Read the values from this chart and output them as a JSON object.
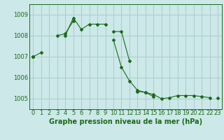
{
  "background_color": "#cce8e8",
  "grid_color": "#aacccc",
  "line_color": "#1a6b1a",
  "xlabel": "Graphe pression niveau de la mer (hPa)",
  "xlabel_fontsize": 7,
  "tick_fontsize": 6,
  "ylim": [
    1004.5,
    1009.5
  ],
  "yticks": [
    1005,
    1006,
    1007,
    1008,
    1009
  ],
  "xlim": [
    -0.5,
    23.5
  ],
  "xticks": [
    0,
    1,
    2,
    3,
    4,
    5,
    6,
    7,
    8,
    9,
    10,
    11,
    12,
    13,
    14,
    15,
    16,
    17,
    18,
    19,
    20,
    21,
    22,
    23
  ],
  "series": [
    [
      1007.0,
      1007.2,
      null,
      1008.0,
      1008.1,
      1008.7,
      null,
      null,
      null,
      null,
      1008.2,
      1008.2,
      1006.8,
      null,
      null,
      null,
      null,
      null,
      null,
      null,
      null,
      null,
      null,
      null
    ],
    [
      null,
      null,
      null,
      null,
      1008.0,
      1008.85,
      1008.3,
      1008.55,
      1008.55,
      1008.55,
      null,
      null,
      null,
      null,
      null,
      null,
      null,
      null,
      null,
      null,
      null,
      null,
      null,
      null
    ],
    [
      1007.0,
      null,
      null,
      null,
      null,
      null,
      null,
      null,
      null,
      null,
      1007.8,
      1006.5,
      1005.85,
      1005.4,
      1005.3,
      1005.2,
      1005.0,
      1005.05,
      1005.15,
      1005.15,
      1005.15,
      1005.1,
      1005.05,
      null
    ],
    [
      1007.0,
      null,
      null,
      null,
      null,
      null,
      null,
      null,
      null,
      null,
      null,
      null,
      null,
      1005.35,
      1005.3,
      1005.1,
      null,
      null,
      null,
      null,
      null,
      null,
      null,
      1005.05
    ]
  ]
}
